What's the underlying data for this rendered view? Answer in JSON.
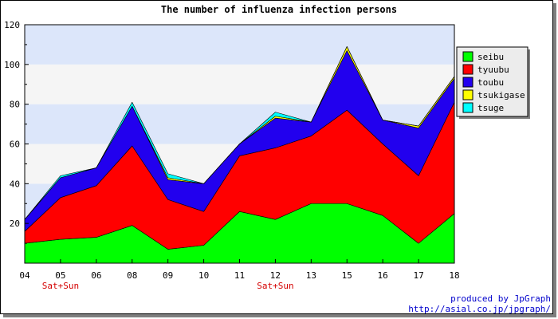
{
  "chart_data": {
    "type": "area",
    "stacked": true,
    "title": "The number of influenza infection persons",
    "categories": [
      "04",
      "05",
      "06",
      "08",
      "09",
      "10",
      "11",
      "12",
      "13",
      "15",
      "16",
      "17",
      "18"
    ],
    "sublabels": [
      "",
      "Sat+Sun",
      "",
      "",
      "",
      "",
      "",
      "Sat+Sun",
      "",
      "",
      "",
      "",
      ""
    ],
    "ylim": [
      0,
      120
    ],
    "yticks": [
      "20",
      "40",
      "60",
      "80",
      "100",
      "120"
    ],
    "grid": "horizontal bands",
    "legend_position": "right",
    "series": [
      {
        "name": "seibu",
        "color": "#00ff00",
        "values": [
          10,
          12,
          13,
          19,
          7,
          9,
          26,
          22,
          30,
          30,
          24,
          10,
          25
        ]
      },
      {
        "name": "tyuubu",
        "color": "#ff0000",
        "values": [
          6,
          21,
          26,
          40,
          25,
          17,
          28,
          36,
          34,
          47,
          36,
          34,
          56
        ]
      },
      {
        "name": "toubu",
        "color": "#2200ee",
        "values": [
          6,
          10,
          9,
          20,
          10,
          14,
          6,
          15,
          7,
          30,
          12,
          24,
          12
        ]
      },
      {
        "name": "tsukigase",
        "color": "#ffff00",
        "values": [
          0,
          0,
          0,
          0,
          1,
          0,
          0,
          1,
          0,
          2,
          0,
          1,
          1
        ]
      },
      {
        "name": "tsuge",
        "color": "#00ffff",
        "values": [
          0,
          1,
          0,
          2,
          2,
          0,
          0,
          2,
          0,
          0,
          0,
          0,
          0
        ]
      }
    ]
  },
  "credits": {
    "line1": "produced by JpGraph",
    "line2": "http://asial.co.jp/jpgraph/"
  }
}
